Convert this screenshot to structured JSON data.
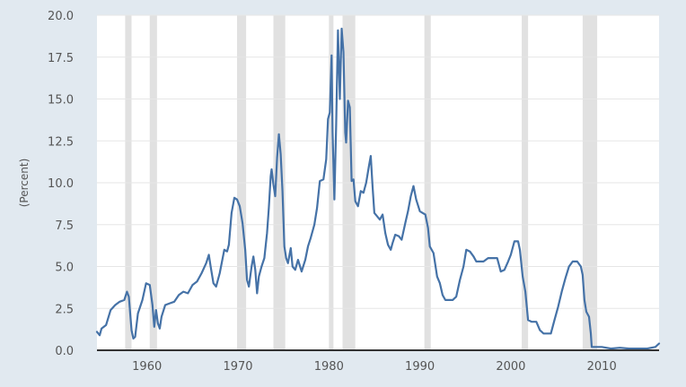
{
  "chart_data": {
    "type": "line",
    "title": "",
    "xlabel": "",
    "ylabel": "(Percent)",
    "xlim": [
      1954.5,
      2016.3
    ],
    "ylim": [
      0,
      20
    ],
    "x_ticks": [
      "1960",
      "1970",
      "1980",
      "1990",
      "2000",
      "2010"
    ],
    "y_ticks": [
      "0.0",
      "2.5",
      "5.0",
      "7.5",
      "10.0",
      "12.5",
      "15.0",
      "17.5",
      "20.0"
    ],
    "grid": true,
    "legend": "none",
    "colors": {
      "background": "#e1e9f0",
      "plot_area": "#ffffff",
      "line": "#4572a7",
      "gridline": "#e6e6e6",
      "recession": "#e1e1e1",
      "axis": "#333333"
    },
    "recessions": [
      [
        1957.6,
        1958.3
      ],
      [
        1960.3,
        1961.1
      ],
      [
        1969.9,
        1970.9
      ],
      [
        1973.9,
        1975.2
      ],
      [
        1980.0,
        1980.5
      ],
      [
        1981.5,
        1982.9
      ],
      [
        1990.5,
        1991.2
      ],
      [
        2001.2,
        2001.9
      ],
      [
        2007.9,
        2009.5
      ]
    ],
    "series": [
      {
        "values": [
          [
            1954.5,
            1.1
          ],
          [
            1954.8,
            0.9
          ],
          [
            1955.0,
            1.3
          ],
          [
            1955.5,
            1.5
          ],
          [
            1956.0,
            2.4
          ],
          [
            1956.5,
            2.7
          ],
          [
            1957.0,
            2.9
          ],
          [
            1957.5,
            3.0
          ],
          [
            1957.8,
            3.5
          ],
          [
            1958.0,
            3.2
          ],
          [
            1958.3,
            1.2
          ],
          [
            1958.5,
            0.7
          ],
          [
            1958.7,
            0.8
          ],
          [
            1959.0,
            2.2
          ],
          [
            1959.5,
            3.0
          ],
          [
            1959.9,
            4.0
          ],
          [
            1960.3,
            3.9
          ],
          [
            1960.6,
            2.7
          ],
          [
            1960.8,
            1.4
          ],
          [
            1961.0,
            2.4
          ],
          [
            1961.2,
            1.6
          ],
          [
            1961.4,
            1.3
          ],
          [
            1961.6,
            2.0
          ],
          [
            1962.0,
            2.7
          ],
          [
            1962.5,
            2.8
          ],
          [
            1963.0,
            2.9
          ],
          [
            1963.5,
            3.3
          ],
          [
            1964.0,
            3.5
          ],
          [
            1964.5,
            3.4
          ],
          [
            1965.0,
            3.9
          ],
          [
            1965.5,
            4.1
          ],
          [
            1966.0,
            4.6
          ],
          [
            1966.5,
            5.2
          ],
          [
            1966.8,
            5.7
          ],
          [
            1967.0,
            5.0
          ],
          [
            1967.3,
            4.0
          ],
          [
            1967.6,
            3.8
          ],
          [
            1968.0,
            4.6
          ],
          [
            1968.5,
            6.0
          ],
          [
            1968.8,
            5.9
          ],
          [
            1969.0,
            6.3
          ],
          [
            1969.3,
            8.2
          ],
          [
            1969.6,
            9.1
          ],
          [
            1969.9,
            9.0
          ],
          [
            1970.2,
            8.6
          ],
          [
            1970.5,
            7.6
          ],
          [
            1970.8,
            6.0
          ],
          [
            1971.0,
            4.2
          ],
          [
            1971.2,
            3.8
          ],
          [
            1971.5,
            5.0
          ],
          [
            1971.7,
            5.6
          ],
          [
            1971.9,
            4.8
          ],
          [
            1972.1,
            3.4
          ],
          [
            1972.3,
            4.4
          ],
          [
            1972.6,
            5.0
          ],
          [
            1972.9,
            5.5
          ],
          [
            1973.2,
            7.0
          ],
          [
            1973.4,
            8.5
          ],
          [
            1973.6,
            10.4
          ],
          [
            1973.7,
            10.8
          ],
          [
            1973.9,
            9.9
          ],
          [
            1974.1,
            9.2
          ],
          [
            1974.3,
            11.5
          ],
          [
            1974.5,
            12.9
          ],
          [
            1974.7,
            11.7
          ],
          [
            1974.9,
            9.5
          ],
          [
            1975.1,
            6.2
          ],
          [
            1975.3,
            5.5
          ],
          [
            1975.5,
            5.2
          ],
          [
            1975.8,
            6.1
          ],
          [
            1976.0,
            5.0
          ],
          [
            1976.3,
            4.8
          ],
          [
            1976.6,
            5.4
          ],
          [
            1977.0,
            4.7
          ],
          [
            1977.4,
            5.4
          ],
          [
            1977.7,
            6.2
          ],
          [
            1978.0,
            6.7
          ],
          [
            1978.4,
            7.5
          ],
          [
            1978.7,
            8.5
          ],
          [
            1979.0,
            10.1
          ],
          [
            1979.4,
            10.2
          ],
          [
            1979.7,
            11.4
          ],
          [
            1979.9,
            13.8
          ],
          [
            1980.1,
            14.2
          ],
          [
            1980.3,
            17.6
          ],
          [
            1980.4,
            13.0
          ],
          [
            1980.6,
            9.0
          ],
          [
            1980.8,
            13.5
          ],
          [
            1981.0,
            19.1
          ],
          [
            1981.2,
            15.0
          ],
          [
            1981.4,
            19.2
          ],
          [
            1981.6,
            17.8
          ],
          [
            1981.8,
            13.0
          ],
          [
            1981.9,
            12.4
          ],
          [
            1982.1,
            14.9
          ],
          [
            1982.3,
            14.5
          ],
          [
            1982.5,
            10.1
          ],
          [
            1982.7,
            10.2
          ],
          [
            1982.9,
            8.9
          ],
          [
            1983.2,
            8.6
          ],
          [
            1983.5,
            9.5
          ],
          [
            1983.8,
            9.4
          ],
          [
            1984.1,
            10.0
          ],
          [
            1984.4,
            11.0
          ],
          [
            1984.6,
            11.6
          ],
          [
            1984.8,
            9.8
          ],
          [
            1985.0,
            8.2
          ],
          [
            1985.3,
            8.0
          ],
          [
            1985.6,
            7.8
          ],
          [
            1985.9,
            8.1
          ],
          [
            1986.2,
            7.0
          ],
          [
            1986.5,
            6.3
          ],
          [
            1986.8,
            6.0
          ],
          [
            1987.0,
            6.4
          ],
          [
            1987.3,
            6.9
          ],
          [
            1987.7,
            6.8
          ],
          [
            1988.0,
            6.6
          ],
          [
            1988.4,
            7.6
          ],
          [
            1988.7,
            8.3
          ],
          [
            1989.0,
            9.2
          ],
          [
            1989.3,
            9.8
          ],
          [
            1989.6,
            9.0
          ],
          [
            1990.0,
            8.3
          ],
          [
            1990.3,
            8.2
          ],
          [
            1990.6,
            8.1
          ],
          [
            1990.9,
            7.3
          ],
          [
            1991.1,
            6.2
          ],
          [
            1991.5,
            5.8
          ],
          [
            1991.9,
            4.4
          ],
          [
            1992.2,
            4.0
          ],
          [
            1992.5,
            3.3
          ],
          [
            1992.8,
            3.0
          ],
          [
            1993.2,
            3.0
          ],
          [
            1993.6,
            3.0
          ],
          [
            1994.0,
            3.2
          ],
          [
            1994.4,
            4.2
          ],
          [
            1994.8,
            5.0
          ],
          [
            1995.1,
            6.0
          ],
          [
            1995.5,
            5.9
          ],
          [
            1995.9,
            5.6
          ],
          [
            1996.2,
            5.3
          ],
          [
            1996.6,
            5.3
          ],
          [
            1997.0,
            5.3
          ],
          [
            1997.5,
            5.5
          ],
          [
            1998.0,
            5.5
          ],
          [
            1998.5,
            5.5
          ],
          [
            1998.9,
            4.7
          ],
          [
            1999.3,
            4.8
          ],
          [
            1999.7,
            5.3
          ],
          [
            2000.0,
            5.7
          ],
          [
            2000.4,
            6.5
          ],
          [
            2000.8,
            6.5
          ],
          [
            2001.0,
            6.0
          ],
          [
            2001.3,
            4.4
          ],
          [
            2001.6,
            3.5
          ],
          [
            2001.9,
            1.8
          ],
          [
            2002.3,
            1.7
          ],
          [
            2002.8,
            1.7
          ],
          [
            2003.2,
            1.2
          ],
          [
            2003.6,
            1.0
          ],
          [
            2004.0,
            1.0
          ],
          [
            2004.4,
            1.0
          ],
          [
            2004.8,
            1.8
          ],
          [
            2005.2,
            2.6
          ],
          [
            2005.6,
            3.5
          ],
          [
            2006.0,
            4.3
          ],
          [
            2006.4,
            5.0
          ],
          [
            2006.8,
            5.3
          ],
          [
            2007.3,
            5.3
          ],
          [
            2007.7,
            5.0
          ],
          [
            2007.9,
            4.5
          ],
          [
            2008.1,
            3.0
          ],
          [
            2008.3,
            2.3
          ],
          [
            2008.6,
            2.0
          ],
          [
            2008.8,
            1.0
          ],
          [
            2008.9,
            0.2
          ],
          [
            2009.3,
            0.2
          ],
          [
            2010.0,
            0.2
          ],
          [
            2011.0,
            0.1
          ],
          [
            2012.0,
            0.15
          ],
          [
            2013.0,
            0.1
          ],
          [
            2014.0,
            0.1
          ],
          [
            2015.0,
            0.1
          ],
          [
            2015.9,
            0.2
          ],
          [
            2016.3,
            0.4
          ]
        ]
      }
    ]
  }
}
